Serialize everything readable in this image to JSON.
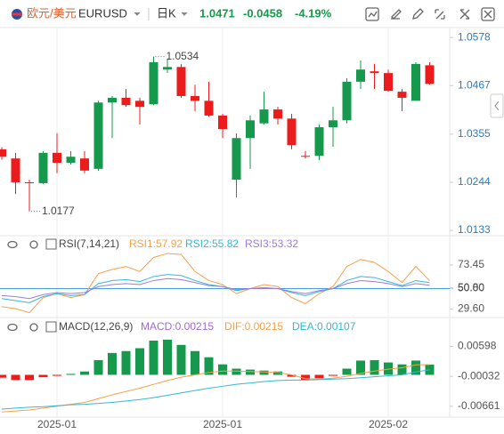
{
  "header": {
    "pair": "欧元/美元",
    "symbol": "EURUSD",
    "interval": "日K",
    "price": "1.0471",
    "change": "-0.0458",
    "change_pct": "-4.19%"
  },
  "chart_data": [
    {
      "type": "candlestick",
      "categories": [
        null,
        null,
        null,
        null,
        "2025-01",
        null,
        null,
        null,
        null,
        null,
        null,
        null,
        null,
        null,
        null,
        null,
        "2025-01",
        null,
        null,
        null,
        null,
        null,
        null,
        null,
        null,
        null,
        null,
        null,
        "2025-02",
        null,
        null,
        null
      ],
      "open": [
        1.032,
        1.0299,
        1.0244,
        1.0242,
        1.0312,
        1.0289,
        1.0299,
        1.0275,
        1.0428,
        1.0439,
        1.0432,
        1.0424,
        1.0504,
        1.051,
        1.0443,
        1.0432,
        1.0398,
        1.025,
        1.0346,
        1.038,
        1.0412,
        1.0391,
        1.0305,
        1.0305,
        1.0371,
        1.0387,
        1.0476,
        1.05,
        1.0496,
        1.0453,
        1.0432,
        1.0514
      ],
      "high": [
        1.0325,
        1.0312,
        1.025,
        1.0316,
        1.0357,
        1.0316,
        1.0316,
        1.0432,
        1.0443,
        1.0459,
        1.0439,
        1.0534,
        1.053,
        1.0517,
        1.0469,
        1.0476,
        1.0402,
        1.0357,
        1.0398,
        1.0453,
        1.0418,
        1.0402,
        1.0316,
        1.0377,
        1.0418,
        1.0484,
        1.0525,
        1.0517,
        1.0504,
        1.0459,
        1.0521,
        1.0521
      ],
      "low": [
        1.0296,
        1.0217,
        1.0177,
        1.024,
        1.0265,
        1.0285,
        1.0265,
        1.0271,
        1.0346,
        1.0418,
        1.0377,
        1.0422,
        1.0496,
        1.0439,
        1.0408,
        1.0395,
        1.0346,
        1.0209,
        1.0275,
        1.0377,
        1.0377,
        1.032,
        1.0299,
        1.0295,
        1.0326,
        1.038,
        1.0459,
        1.0459,
        1.0453,
        1.0408,
        1.0432,
        1.0469
      ],
      "close": [
        1.0303,
        1.0244,
        1.0242,
        1.0312,
        1.0289,
        1.0303,
        1.0271,
        1.0428,
        1.0439,
        1.0422,
        1.0418,
        1.0521,
        1.051,
        1.0443,
        1.0432,
        1.0398,
        1.0367,
        1.0346,
        1.0387,
        1.0412,
        1.0391,
        1.033,
        1.0303,
        1.0371,
        1.0387,
        1.0476,
        1.0504,
        1.0496,
        1.0455,
        1.0439,
        1.0517,
        1.0471
      ],
      "up_color": "#16994c",
      "down_color": "#ec1c1c",
      "mark_extremes": true,
      "ylim": [
        1.0127,
        1.0603
      ],
      "yticks": [
        {
          "value": 1.0578,
          "label": "1.0578"
        },
        {
          "value": 1.0467,
          "label": "1.0467"
        },
        {
          "value": 1.0355,
          "label": "1.0355"
        },
        {
          "value": 1.0244,
          "label": "1.0244"
        },
        {
          "value": 1.0133,
          "label": "1.0133"
        }
      ]
    },
    {
      "type": "line",
      "title": "RSI(7,14,21)",
      "series": [
        {
          "name": "RSI1:57.92",
          "color": "#f5a04a",
          "values": [
            32,
            30,
            26,
            41,
            45,
            41,
            44,
            65,
            69,
            72,
            67,
            81,
            85,
            84,
            67,
            58,
            54,
            45,
            50,
            54,
            52,
            41,
            35,
            45,
            52,
            72,
            79,
            76,
            67,
            56,
            72,
            57.92
          ]
        },
        {
          "name": "RSI2:55.82",
          "color": "#35b8d6",
          "values": [
            40,
            38,
            36,
            42,
            45,
            43,
            44,
            55,
            58,
            59,
            57,
            62,
            64,
            63,
            58,
            54,
            52,
            48,
            50,
            51,
            50,
            46,
            43,
            47,
            50,
            58,
            62,
            61,
            57,
            53,
            58,
            55.82
          ]
        },
        {
          "name": "RSI3:53.32",
          "color": "#9d7ae0",
          "values": [
            43,
            42,
            40,
            44,
            46,
            45,
            46,
            52,
            54,
            55,
            54,
            58,
            60,
            59,
            56,
            53,
            52,
            49,
            50,
            50,
            50,
            47,
            45,
            48,
            50,
            55,
            58,
            57,
            55,
            52,
            55,
            53.32
          ]
        }
      ],
      "reference_lines": [
        50
      ],
      "reference_color": "#4a9ee8",
      "ylim": [
        23,
        100
      ],
      "yticks": [
        {
          "value": 73.45,
          "label": "73.45"
        },
        {
          "value": 50.8,
          "label": "50.80"
        },
        {
          "value": 50,
          "label": "50.00"
        },
        {
          "value": 29.6,
          "label": "29.60"
        }
      ]
    },
    {
      "type": "combo",
      "title": "MACD(12,26,9)",
      "series": [
        {
          "name": "MACD:0.00215",
          "kind": "bar",
          "color": "#9d6bd6",
          "up_color": "#16994c",
          "down_color": "#ec1c1c",
          "values": [
            -0.0006,
            -0.0011,
            -0.0011,
            -0.0005,
            -0.0002,
            0.0002,
            0.0007,
            0.0031,
            0.0046,
            0.005,
            0.0056,
            0.0072,
            0.0074,
            0.0063,
            0.005,
            0.0037,
            0.0022,
            0.0013,
            0.0011,
            0.0009,
            0.0007,
            -0.0004,
            -0.0011,
            -0.0007,
            -0.0002,
            0.0013,
            0.003,
            0.0031,
            0.0026,
            0.0022,
            0.003,
            0.00215
          ]
        },
        {
          "name": "DIF:0.00215",
          "kind": "line",
          "color": "#f5a04a",
          "values": [
            -0.0078,
            -0.0076,
            -0.0074,
            -0.007,
            -0.0066,
            -0.0062,
            -0.0058,
            -0.005,
            -0.0042,
            -0.0035,
            -0.0028,
            -0.002,
            -0.0012,
            -0.0005,
            0.0,
            0.0005,
            0.0008,
            0.0008,
            0.0007,
            0.0006,
            0.0005,
            0.0,
            -0.0008,
            -0.0009,
            -0.0007,
            -0.0003,
            0.0003,
            0.0008,
            0.0012,
            0.0015,
            0.0021,
            0.00215
          ]
        },
        {
          "name": "DEA:0.00107",
          "kind": "line",
          "color": "#35b8d6",
          "values": [
            -0.0072,
            -0.007,
            -0.0068,
            -0.0067,
            -0.0065,
            -0.0063,
            -0.0062,
            -0.006,
            -0.0058,
            -0.0055,
            -0.0052,
            -0.0048,
            -0.0043,
            -0.0038,
            -0.0033,
            -0.0028,
            -0.0024,
            -0.002,
            -0.0017,
            -0.0014,
            -0.0012,
            -0.0011,
            -0.0011,
            -0.001,
            -0.0009,
            -0.0008,
            -0.0006,
            -0.0004,
            -0.0002,
            0.0,
            0.0006,
            0.00107
          ]
        }
      ],
      "ylim": [
        -0.0087,
        0.0115
      ],
      "yticks": [
        0.00598,
        -0.00032,
        -0.00661
      ]
    }
  ]
}
